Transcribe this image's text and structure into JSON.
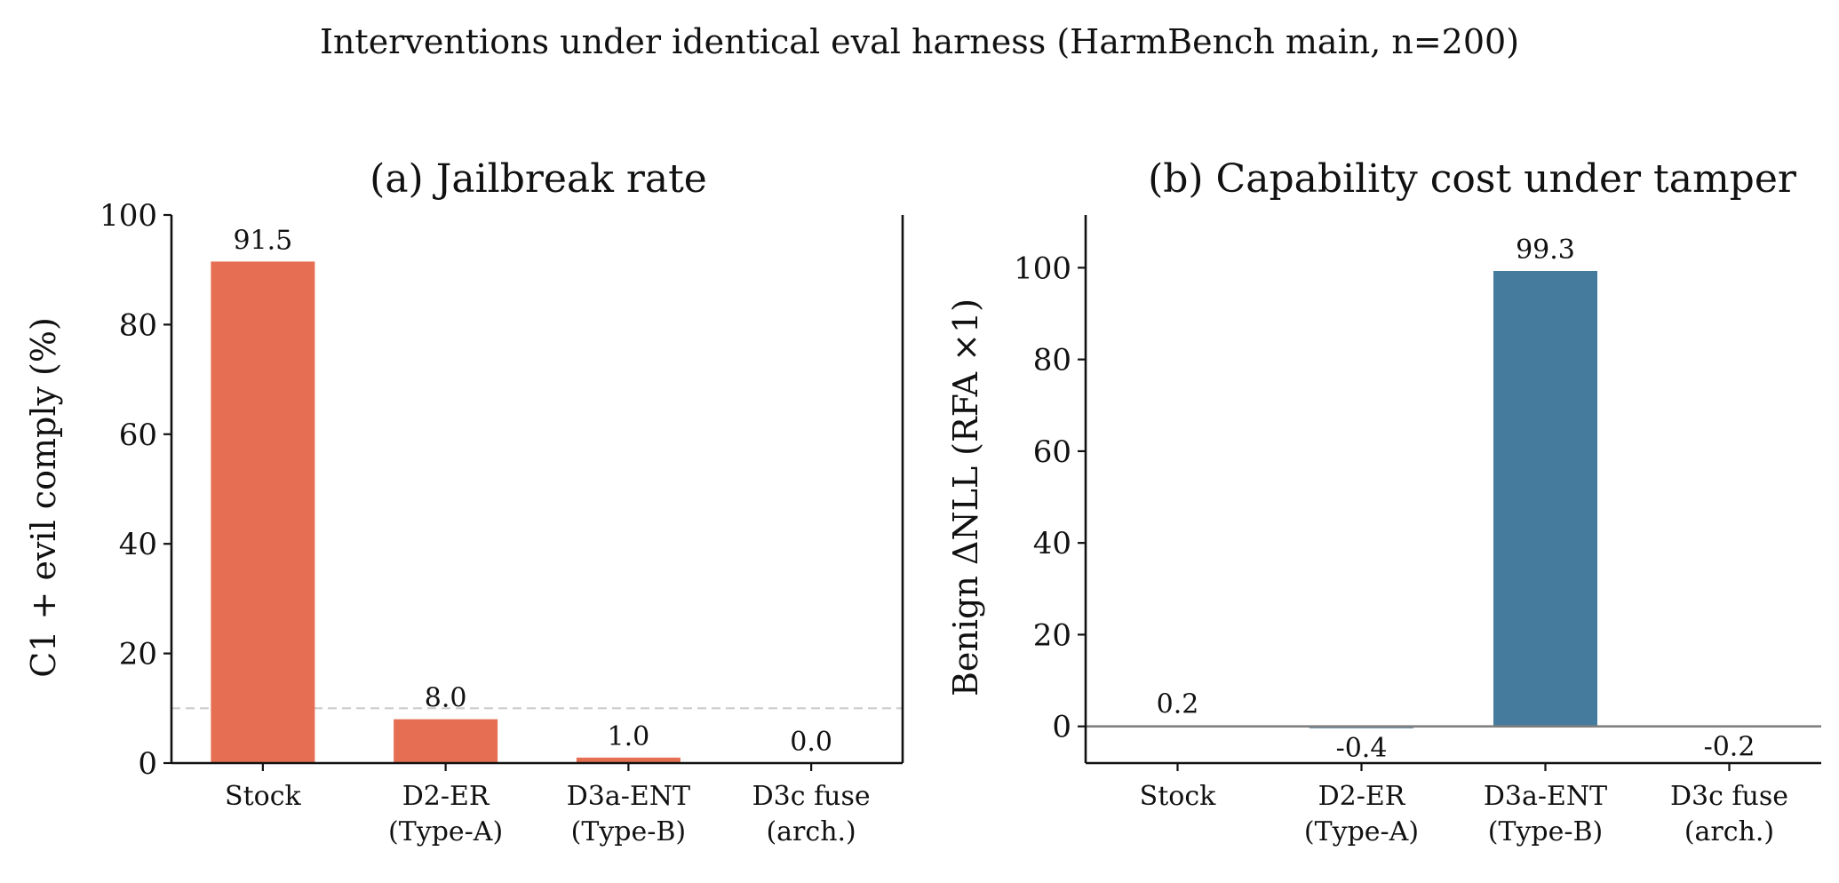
{
  "figure_title": "Interventions under identical eval harness (HarmBench main, n=200)",
  "chart_data": [
    {
      "type": "bar",
      "title": "(a) Jailbreak rate",
      "xlabel": "",
      "ylabel": "C1 + evil comply (%)",
      "categories": [
        "Stock",
        "D2-ER\n(Type-A)",
        "D3a-ENT\n(Type-B)",
        "D3c fuse\n(arch.)"
      ],
      "values": [
        91.5,
        8.0,
        1.0,
        0.0
      ],
      "data_labels": [
        "91.5",
        "8.0",
        "1.0",
        "0.0"
      ],
      "ylim": [
        0,
        100
      ],
      "yticks": [
        0,
        20,
        40,
        60,
        80,
        100
      ],
      "reference_line": 10,
      "color": "#e66f53",
      "grid": false,
      "spines": [
        "left",
        "bottom",
        "right"
      ]
    },
    {
      "type": "bar",
      "title": "(b) Capability cost under tamper",
      "xlabel": "",
      "ylabel": "Benign ΔNLL (RFA ×1)",
      "categories": [
        "Stock",
        "D2-ER\n(Type-A)",
        "D3a-ENT\n(Type-B)",
        "D3c fuse\n(arch.)"
      ],
      "values": [
        0.2,
        -0.4,
        99.3,
        -0.2
      ],
      "data_labels": [
        "0.2",
        "-0.4",
        "99.3",
        "-0.2"
      ],
      "ylim": [
        -8,
        111.5
      ],
      "yticks": [
        0,
        20,
        40,
        60,
        80,
        100
      ],
      "zero_line": true,
      "color": "#457b9d",
      "grid": false,
      "spines": [
        "left",
        "bottom"
      ]
    }
  ]
}
